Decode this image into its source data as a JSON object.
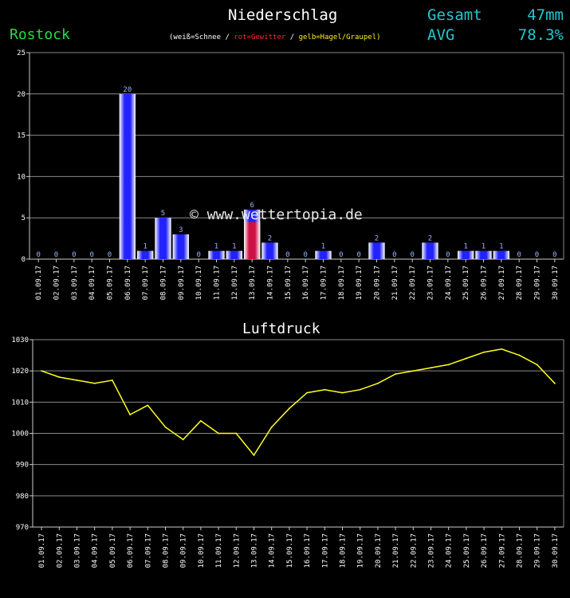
{
  "header": {
    "title": "Niederschlag",
    "station": "Rostock",
    "legend": {
      "snow": "(weiß=Schnee /",
      "thunder": "rot=Gewitter",
      "sep": "/",
      "hail": "gelb=Hagel/Graupel)"
    },
    "total_label": "Gesamt",
    "total_value": "47mm",
    "avg_label": "AVG",
    "avg_value": "78.3%"
  },
  "watermark": "© www.wettertopia.de",
  "colors": {
    "bar": "#2222ff",
    "thunder": "#cc1144",
    "line": "#ffff22",
    "grid": "#8a8a8a",
    "axis": "#cccccc",
    "title_green": "#22dd44",
    "stat_cyan": "#22c8d0"
  },
  "chart_data": [
    {
      "type": "bar",
      "title": "Niederschlag",
      "categories": [
        "01.09.17",
        "02.09.17",
        "03.09.17",
        "04.09.17",
        "05.09.17",
        "06.09.17",
        "07.09.17",
        "08.09.17",
        "09.09.17",
        "10.09.17",
        "11.09.17",
        "12.09.17",
        "13.09.17",
        "14.09.17",
        "15.09.17",
        "16.09.17",
        "17.09.17",
        "18.09.17",
        "19.09.17",
        "20.09.17",
        "21.09.17",
        "22.09.17",
        "23.09.17",
        "24.09.17",
        "25.09.17",
        "26.09.17",
        "27.09.17",
        "28.09.17",
        "29.09.17",
        "30.09.17"
      ],
      "values": [
        0,
        0,
        0,
        0,
        0,
        20,
        1,
        5,
        3,
        0,
        1,
        1,
        6,
        2,
        0,
        0,
        1,
        0,
        0,
        2,
        0,
        0,
        2,
        0,
        1,
        1,
        1,
        0,
        0,
        0
      ],
      "value_labels": [
        "0",
        "0",
        "0",
        "0",
        "0",
        "20",
        "1",
        "5",
        "3",
        "0",
        "1",
        "1",
        "6",
        "2",
        "0",
        "0",
        "1",
        "0",
        "0",
        "2",
        "0",
        "0",
        "2",
        "0",
        "1",
        "1",
        "1",
        "0",
        "0",
        "0"
      ],
      "thunder_portion": [
        0,
        0,
        0,
        0,
        0,
        0,
        0,
        0,
        0,
        0,
        0,
        0,
        4.5,
        0,
        0,
        0,
        0,
        0,
        0,
        0,
        0,
        0,
        0,
        0,
        0,
        0,
        0,
        0,
        0,
        0
      ],
      "ylim": [
        0,
        25
      ],
      "yticks": [
        0,
        5,
        10,
        15,
        20,
        25
      ],
      "grid": true
    },
    {
      "type": "line",
      "title": "Luftdruck",
      "categories": [
        "01.09.17",
        "02.09.17",
        "03.09.17",
        "04.09.17",
        "05.09.17",
        "06.09.17",
        "07.09.17",
        "08.09.17",
        "09.09.17",
        "10.09.17",
        "11.09.17",
        "12.09.17",
        "13.09.17",
        "14.09.17",
        "15.09.17",
        "16.09.17",
        "17.09.17",
        "18.09.17",
        "19.09.17",
        "20.09.17",
        "21.09.17",
        "22.09.17",
        "23.09.17",
        "24.09.17",
        "25.09.17",
        "26.09.17",
        "27.09.17",
        "28.09.17",
        "29.09.17",
        "30.09.17"
      ],
      "values": [
        1020,
        1018,
        1017,
        1016,
        1017,
        1006,
        1009,
        1002,
        998,
        1004,
        1000,
        1000,
        993,
        1002,
        1008,
        1013,
        1014,
        1013,
        1014,
        1016,
        1019,
        1020,
        1021,
        1022,
        1024,
        1026,
        1027,
        1025,
        1022,
        1016
      ],
      "ylim": [
        970,
        1030
      ],
      "yticks": [
        970,
        980,
        990,
        1000,
        1010,
        1020,
        1030
      ],
      "grid": true
    }
  ]
}
